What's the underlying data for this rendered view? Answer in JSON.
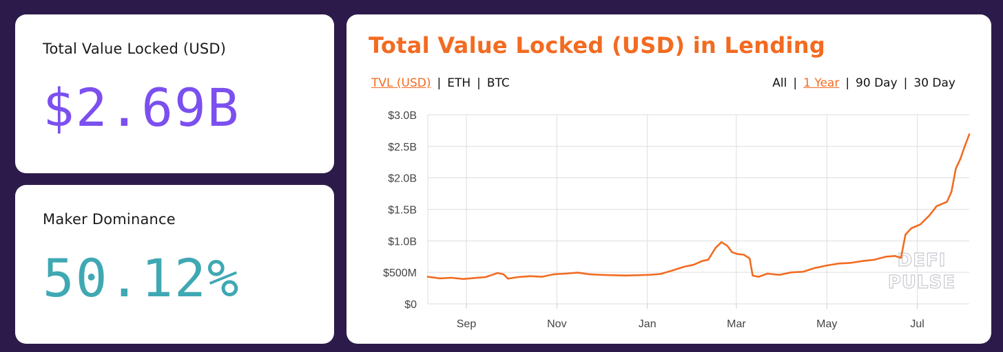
{
  "stats": {
    "tvl": {
      "label": "Total Value Locked (USD)",
      "value": "$2.69B",
      "color": "#7b4ff0"
    },
    "dominance": {
      "label": "Maker Dominance",
      "value": "50.12%",
      "color": "#3fa8b3"
    }
  },
  "chart_panel": {
    "title": "Total Value Locked (USD) in Lending",
    "unit_toggles": [
      {
        "label": "TVL (USD)",
        "active": true
      },
      {
        "label": "ETH",
        "active": false
      },
      {
        "label": "BTC",
        "active": false
      }
    ],
    "range_toggles": [
      {
        "label": "All",
        "active": false
      },
      {
        "label": "1 Year",
        "active": true
      },
      {
        "label": "90 Day",
        "active": false
      },
      {
        "label": "30 Day",
        "active": false
      }
    ],
    "watermark": [
      "DEFI",
      "PULSE"
    ],
    "accent_color": "#f26b21"
  },
  "chart_data": {
    "type": "line",
    "title": "Total Value Locked (USD) in Lending",
    "xlabel": "",
    "ylabel": "",
    "ylim": [
      0,
      3000000000
    ],
    "xlim": [
      "2019-08-06",
      "2020-08-05"
    ],
    "grid": true,
    "y_ticks": [
      {
        "value": 0,
        "label": "$0"
      },
      {
        "value": 500000000,
        "label": "$500M"
      },
      {
        "value": 1000000000,
        "label": "$1.0B"
      },
      {
        "value": 1500000000,
        "label": "$1.5B"
      },
      {
        "value": 2000000000,
        "label": "$2.0B"
      },
      {
        "value": 2500000000,
        "label": "$2.5B"
      },
      {
        "value": 3000000000,
        "label": "$3.0B"
      }
    ],
    "x_ticks": [
      {
        "date": "2019-09-01",
        "label": "Sep"
      },
      {
        "date": "2019-11-01",
        "label": "Nov"
      },
      {
        "date": "2020-01-01",
        "label": "Jan"
      },
      {
        "date": "2020-03-01",
        "label": "Mar"
      },
      {
        "date": "2020-05-01",
        "label": "May"
      },
      {
        "date": "2020-07-01",
        "label": "Jul"
      }
    ],
    "series": [
      {
        "color": "#f26b21",
        "points": [
          [
            "2019-08-06",
            430000000
          ],
          [
            "2019-08-14",
            405000000
          ],
          [
            "2019-08-22",
            415000000
          ],
          [
            "2019-08-30",
            395000000
          ],
          [
            "2019-09-06",
            410000000
          ],
          [
            "2019-09-14",
            425000000
          ],
          [
            "2019-09-22",
            490000000
          ],
          [
            "2019-09-26",
            470000000
          ],
          [
            "2019-09-29",
            400000000
          ],
          [
            "2019-10-06",
            425000000
          ],
          [
            "2019-10-14",
            440000000
          ],
          [
            "2019-10-22",
            430000000
          ],
          [
            "2019-10-30",
            470000000
          ],
          [
            "2019-11-07",
            480000000
          ],
          [
            "2019-11-15",
            495000000
          ],
          [
            "2019-11-23",
            470000000
          ],
          [
            "2019-12-01",
            460000000
          ],
          [
            "2019-12-09",
            455000000
          ],
          [
            "2019-12-17",
            450000000
          ],
          [
            "2019-12-25",
            455000000
          ],
          [
            "2020-01-02",
            460000000
          ],
          [
            "2020-01-10",
            475000000
          ],
          [
            "2020-01-18",
            530000000
          ],
          [
            "2020-01-26",
            590000000
          ],
          [
            "2020-02-01",
            620000000
          ],
          [
            "2020-02-07",
            680000000
          ],
          [
            "2020-02-11",
            700000000
          ],
          [
            "2020-02-16",
            890000000
          ],
          [
            "2020-02-20",
            980000000
          ],
          [
            "2020-02-24",
            920000000
          ],
          [
            "2020-02-27",
            820000000
          ],
          [
            "2020-03-02",
            790000000
          ],
          [
            "2020-03-06",
            780000000
          ],
          [
            "2020-03-10",
            720000000
          ],
          [
            "2020-03-12",
            450000000
          ],
          [
            "2020-03-16",
            430000000
          ],
          [
            "2020-03-22",
            480000000
          ],
          [
            "2020-03-30",
            460000000
          ],
          [
            "2020-04-07",
            500000000
          ],
          [
            "2020-04-15",
            510000000
          ],
          [
            "2020-04-23",
            570000000
          ],
          [
            "2020-05-01",
            610000000
          ],
          [
            "2020-05-09",
            640000000
          ],
          [
            "2020-05-17",
            650000000
          ],
          [
            "2020-05-25",
            680000000
          ],
          [
            "2020-06-02",
            700000000
          ],
          [
            "2020-06-10",
            750000000
          ],
          [
            "2020-06-16",
            760000000
          ],
          [
            "2020-06-20",
            730000000
          ],
          [
            "2020-06-23",
            1100000000
          ],
          [
            "2020-06-27",
            1200000000
          ],
          [
            "2020-07-03",
            1260000000
          ],
          [
            "2020-07-09",
            1400000000
          ],
          [
            "2020-07-14",
            1550000000
          ],
          [
            "2020-07-21",
            1620000000
          ],
          [
            "2020-07-24",
            1780000000
          ],
          [
            "2020-07-27",
            2150000000
          ],
          [
            "2020-07-30",
            2300000000
          ],
          [
            "2020-08-02",
            2500000000
          ],
          [
            "2020-08-05",
            2690000000
          ]
        ]
      }
    ]
  }
}
